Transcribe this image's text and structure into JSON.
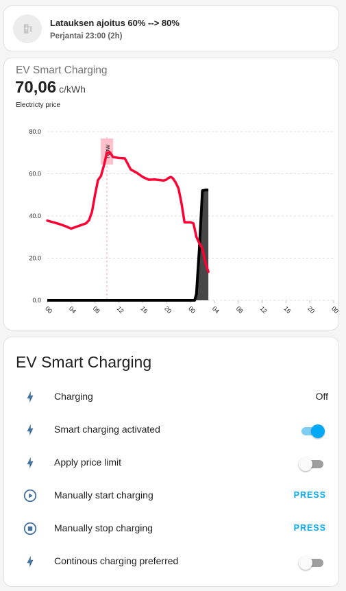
{
  "schedule_card": {
    "title": "Latauksen ajoitus 60% --> 80%",
    "subtitle": "Perjantai 23:00 (2h)",
    "icon": "ev-station-icon"
  },
  "chart_card": {
    "title": "EV Smart Charging",
    "price_value": "70,06",
    "price_unit": "c/kWh",
    "price_label": "Electricty price",
    "now_label": "Now"
  },
  "chart_data": {
    "type": "line",
    "y_tick_labels": [
      "0.0",
      "20.0",
      "40.0",
      "60.0",
      "80.0"
    ],
    "ylim": [
      0,
      80
    ],
    "x_tick_labels": [
      "00",
      "04",
      "08",
      "12",
      "16",
      "20",
      "00",
      "04",
      "08",
      "12",
      "16",
      "20",
      "00"
    ],
    "x_unit": "hours since start of first day",
    "grid": true,
    "now_hour": 10,
    "series": [
      {
        "color": "#ff0033",
        "x": [
          0,
          1,
          2,
          3,
          3.5,
          4,
          5,
          6,
          6.5,
          7,
          7.5,
          8,
          8.5,
          9,
          9.5,
          10,
          10.5,
          11,
          12,
          13,
          14,
          15,
          16,
          17,
          18,
          19,
          19.5,
          20,
          20.3,
          20.7,
          21,
          21.5,
          22,
          22.5,
          23,
          23.5,
          24
        ],
        "values": [
          37.8,
          37,
          36.2,
          35.2,
          34.6,
          34,
          35,
          36,
          36.5,
          38,
          42,
          50,
          57,
          59,
          64,
          70.1,
          70.2,
          68,
          67.5,
          67.3,
          62,
          60.5,
          58.5,
          57.2,
          57.3,
          57,
          56.8,
          57.3,
          58,
          58.5,
          58,
          56,
          53,
          46,
          37,
          37,
          37
        ]
      },
      {
        "color": "#ff0033",
        "x": [
          24,
          24.5,
          25,
          25.5,
          26,
          26.5,
          27
        ],
        "values": [
          37,
          36.5,
          30,
          27,
          24.5,
          18,
          13.5
        ]
      },
      {
        "color": "#000000",
        "x": [
          0,
          24.7,
          25,
          25.5,
          26,
          26.5,
          27
        ],
        "values": [
          0,
          0,
          3,
          25,
          52,
          52.3,
          52.3
        ]
      }
    ]
  },
  "entities_card": {
    "title": "EV Smart Charging",
    "rows": [
      {
        "icon": "lightning-bolt-icon",
        "label": "Charging",
        "control": "state",
        "value": "Off"
      },
      {
        "icon": "lightning-bolt-icon",
        "label": "Smart charging activated",
        "control": "toggle",
        "value": true
      },
      {
        "icon": "lightning-bolt-icon",
        "label": "Apply price limit",
        "control": "toggle",
        "value": false
      },
      {
        "icon": "play-circle-icon",
        "label": "Manually start charging",
        "control": "button",
        "value": "PRESS"
      },
      {
        "icon": "stop-circle-icon",
        "label": "Manually stop charging",
        "control": "button",
        "value": "PRESS"
      },
      {
        "icon": "lightning-bolt-icon",
        "label": "Continous charging preferred",
        "control": "toggle",
        "value": false
      }
    ]
  },
  "colors": {
    "icon_blue": "#44739e",
    "accent": "#03a9f4",
    "price_line": "#ff0033",
    "charge_line": "#000000",
    "now_band": "#ffc0cb"
  }
}
